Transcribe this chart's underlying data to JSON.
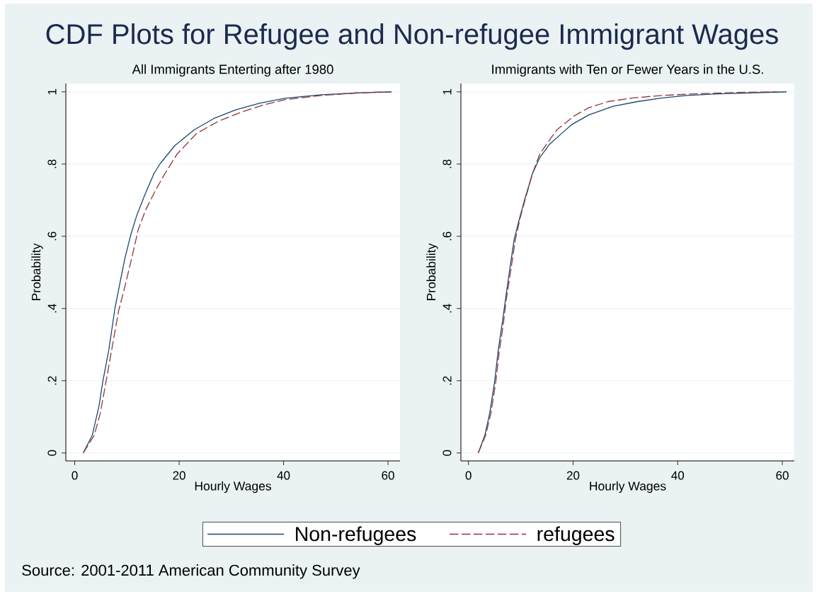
{
  "chart_data": [
    {
      "type": "line",
      "title": "CDF Plots for Refugee and Non-refugee Immigrant Wages",
      "subtitle": "All Immigrants Enterting after 1980",
      "xlabel": "Hourly Wages",
      "ylabel": "Probability",
      "xlim": [
        -1.7,
        62.3
      ],
      "ylim": [
        -0.022,
        1.023
      ],
      "xticks": [
        0,
        20,
        40,
        60
      ],
      "yticks": [
        0,
        {
          "value": 0.2,
          "label": ".2"
        },
        {
          "value": 0.4,
          "label": ".4"
        },
        {
          "value": 0.6,
          "label": ".6"
        },
        {
          "value": 0.8,
          "label": ".8"
        },
        1
      ],
      "grid": "y",
      "legend": "bottom",
      "series": [
        {
          "name": "Non-refugees",
          "color": "#1a476f",
          "line_style": "solid",
          "x": [
            1.64,
            3.36,
            4.67,
            5.38,
            6.54,
            7.71,
            8.41,
            9.58,
            10.75,
            11.91,
            13.55,
            15.19,
            16.35,
            19.16,
            22.9,
            26.64,
            30.84,
            35.5,
            40.2,
            47.2,
            54.2,
            60.7
          ],
          "values": [
            0,
            0.049,
            0.131,
            0.198,
            0.286,
            0.401,
            0.452,
            0.537,
            0.605,
            0.659,
            0.719,
            0.774,
            0.801,
            0.851,
            0.895,
            0.926,
            0.95,
            0.969,
            0.982,
            0.992,
            0.997,
            1
          ]
        },
        {
          "name": "refugees",
          "color": "#90353b",
          "line_style": "dashed",
          "x": [
            1.64,
            3.74,
            4.9,
            5.84,
            7.0,
            8.41,
            9.58,
            10.99,
            12.15,
            13.55,
            15.42,
            17.29,
            19.62,
            23.36,
            27.57,
            31.78,
            35.97,
            40.2,
            47.2,
            54.2,
            60.3
          ],
          "values": [
            0,
            0.049,
            0.11,
            0.185,
            0.279,
            0.394,
            0.459,
            0.544,
            0.618,
            0.672,
            0.726,
            0.774,
            0.828,
            0.885,
            0.919,
            0.943,
            0.963,
            0.978,
            0.99,
            0.997,
            1
          ]
        }
      ],
      "annotations": [
        "Source: 2001-2011 American Community Survey"
      ]
    },
    {
      "type": "line",
      "subtitle": "Immigrants with Ten or Fewer Years in the U.S.",
      "xlabel": "Hourly Wages",
      "ylabel": "Probability",
      "xlim": [
        -1.45,
        62.3
      ],
      "ylim": [
        -0.022,
        1.023
      ],
      "xticks": [
        0,
        20,
        40,
        60
      ],
      "yticks": [
        0,
        {
          "value": 0.2,
          "label": ".2"
        },
        {
          "value": 0.4,
          "label": ".4"
        },
        {
          "value": 0.6,
          "label": ".6"
        },
        {
          "value": 0.8,
          "label": ".8"
        },
        1
      ],
      "grid": "y",
      "series": [
        {
          "color": "#1a476f",
          "line_style": "solid",
          "x": [
            1.87,
            3.13,
            4.06,
            5.0,
            5.7,
            6.4,
            7.1,
            8.03,
            8.73,
            9.67,
            10.83,
            12.24,
            13.64,
            15.5,
            17.83,
            19.7,
            22.98,
            27.65,
            32.3,
            36.98,
            41.65,
            48.65,
            55.67,
            60.8
          ],
          "values": [
            0,
            0.049,
            0.11,
            0.198,
            0.286,
            0.354,
            0.428,
            0.523,
            0.591,
            0.645,
            0.706,
            0.774,
            0.818,
            0.855,
            0.885,
            0.909,
            0.936,
            0.96,
            0.973,
            0.983,
            0.99,
            0.995,
            0.998,
            1
          ]
        },
        {
          "color": "#90353b",
          "line_style": "dashed",
          "x": [
            1.87,
            3.28,
            4.29,
            5.23,
            5.93,
            6.64,
            7.19,
            8.27,
            8.96,
            9.9,
            11.06,
            12.24,
            13.64,
            15.27,
            16.91,
            20.18,
            22.98,
            26.72,
            31.37,
            36.98,
            44.0,
            51.0,
            58.93
          ],
          "values": [
            0,
            0.049,
            0.11,
            0.198,
            0.286,
            0.354,
            0.421,
            0.523,
            0.591,
            0.652,
            0.713,
            0.774,
            0.828,
            0.862,
            0.895,
            0.933,
            0.956,
            0.973,
            0.983,
            0.99,
            0.995,
            0.998,
            1
          ]
        }
      ]
    }
  ]
}
